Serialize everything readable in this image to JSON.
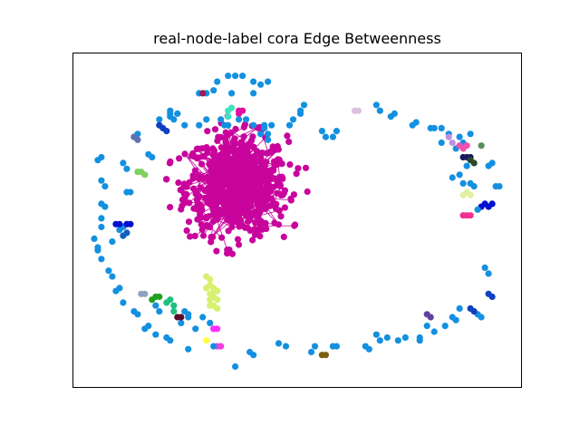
{
  "chart_data": {
    "type": "scatter",
    "title": "real-node-label cora Edge Betweenness",
    "xlabel": "",
    "ylabel": "",
    "axes_ticks": false,
    "grid": false,
    "legend": "none",
    "colors": {
      "main_cluster": "#c8049c",
      "satellite_default": "#1490e0",
      "frame": "#000000"
    },
    "main_cluster": {
      "name": "",
      "center": [
        0.335,
        0.645
      ],
      "spread": [
        0.07,
        0.085
      ],
      "count": 700
    },
    "points": [
      [
        0.31,
        0.03,
        "#1490e0"
      ],
      [
        0.33,
        0.03,
        "#1490e0"
      ],
      [
        0.35,
        0.03,
        "#1490e0"
      ],
      [
        0.28,
        0.05,
        "#1490e0"
      ],
      [
        0.38,
        0.05,
        "#1490e0"
      ],
      [
        0.25,
        0.09,
        "#1490e0"
      ],
      [
        0.23,
        0.09,
        "#1490e0"
      ],
      [
        0.27,
        0.08,
        "#1490e0"
      ],
      [
        0.42,
        0.05,
        "#1490e0"
      ],
      [
        0.4,
        0.06,
        "#1490e0"
      ],
      [
        0.38,
        0.09,
        "#1490e0"
      ],
      [
        0.24,
        0.09,
        "#a01854"
      ],
      [
        0.32,
        0.09,
        "#1490e0"
      ],
      [
        0.17,
        0.16,
        "#1490e0"
      ],
      [
        0.31,
        0.17,
        "#40e0c0"
      ],
      [
        0.31,
        0.15,
        "#40e0c0"
      ],
      [
        0.32,
        0.14,
        "#40e0c0"
      ],
      [
        0.51,
        0.16,
        "#1490e0"
      ],
      [
        0.51,
        0.15,
        "#1490e0"
      ],
      [
        0.52,
        0.13,
        "#1490e0"
      ],
      [
        0.34,
        0.15,
        "#e010a0"
      ],
      [
        0.34,
        0.16,
        "#e010a0"
      ],
      [
        0.35,
        0.15,
        "#e010a0"
      ],
      [
        0.42,
        0.23,
        "#1490e0"
      ],
      [
        0.43,
        0.2,
        "#1490e0"
      ],
      [
        0.41,
        0.21,
        "#1490e0"
      ],
      [
        0.42,
        0.25,
        "#1490e0"
      ],
      [
        0.3,
        0.2,
        "#1490e0"
      ],
      [
        0.19,
        0.2,
        "#1490e0"
      ],
      [
        0.23,
        0.2,
        "#1490e0"
      ],
      [
        0.25,
        0.18,
        "#1490e0"
      ],
      [
        0.29,
        0.18,
        "#1490e0"
      ],
      [
        0.31,
        0.2,
        "#1490e0"
      ],
      [
        0.34,
        0.18,
        "#1490e0"
      ],
      [
        0.36,
        0.18,
        "#1490e0"
      ],
      [
        0.38,
        0.2,
        "#1490e0"
      ],
      [
        0.4,
        0.23,
        "#1490e0"
      ],
      [
        0.41,
        0.2,
        "#1490e0"
      ],
      [
        0.48,
        0.2,
        "#1490e0"
      ],
      [
        0.49,
        0.18,
        "#1490e0"
      ],
      [
        0.57,
        0.22,
        "#1490e0"
      ],
      [
        0.58,
        0.24,
        "#1490e0"
      ],
      [
        0.6,
        0.24,
        "#1490e0"
      ],
      [
        0.61,
        0.22,
        "#1490e0"
      ],
      [
        0.66,
        0.15,
        "#ddc0dd"
      ],
      [
        0.67,
        0.15,
        "#ddc0dd"
      ],
      [
        0.72,
        0.13,
        "#1490e0"
      ],
      [
        0.73,
        0.15,
        "#1490e0"
      ],
      [
        0.76,
        0.17,
        "#1490e0"
      ],
      [
        0.77,
        0.16,
        "#1490e0"
      ],
      [
        0.82,
        0.2,
        "#1490e0"
      ],
      [
        0.83,
        0.19,
        "#1490e0"
      ],
      [
        0.87,
        0.21,
        "#1490e0"
      ],
      [
        0.88,
        0.21,
        "#1490e0"
      ],
      [
        0.9,
        0.21,
        "#1490e0"
      ],
      [
        0.92,
        0.23,
        "#1490e0"
      ],
      [
        0.93,
        0.26,
        "#c090e0"
      ],
      [
        0.92,
        0.24,
        "#c090e0"
      ],
      [
        0.95,
        0.24,
        "#1490e0"
      ],
      [
        0.96,
        0.26,
        "#1490e0"
      ],
      [
        0.98,
        0.23,
        "#1490e0"
      ],
      [
        0.9,
        0.26,
        "#1490e0"
      ],
      [
        0.94,
        0.28,
        "#1490e0"
      ],
      [
        0.95,
        0.27,
        "#f050b0"
      ],
      [
        0.96,
        0.28,
        "#f050b0"
      ],
      [
        0.97,
        0.27,
        "#f050b0"
      ],
      [
        0.96,
        0.31,
        "#1a1a60"
      ],
      [
        0.97,
        0.31,
        "#1a1a60"
      ],
      [
        0.98,
        0.31,
        "#1a1a60"
      ],
      [
        0.98,
        0.32,
        "#2a4a2a"
      ],
      [
        0.99,
        0.33,
        "#2a4a2a"
      ],
      [
        1.01,
        0.27,
        "#5a9060"
      ],
      [
        0.97,
        0.34,
        "#1490e0"
      ],
      [
        0.95,
        0.37,
        "#1490e0"
      ],
      [
        0.93,
        0.38,
        "#1490e0"
      ],
      [
        0.96,
        0.4,
        "#1490e0"
      ],
      [
        0.98,
        0.4,
        "#1490e0"
      ],
      [
        0.99,
        0.41,
        "#1490e0"
      ],
      [
        1.04,
        0.33,
        "#1490e0"
      ],
      [
        1.03,
        0.34,
        "#1490e0"
      ],
      [
        0.97,
        0.43,
        "#e0f0a0"
      ],
      [
        0.96,
        0.44,
        "#e0f0a0"
      ],
      [
        0.98,
        0.44,
        "#e0f0a0"
      ],
      [
        1.05,
        0.41,
        "#1490e0"
      ],
      [
        1.06,
        0.41,
        "#1490e0"
      ],
      [
        1.01,
        0.48,
        "#0010d0"
      ],
      [
        1.02,
        0.47,
        "#0010d0"
      ],
      [
        1.03,
        0.48,
        "#0010d0"
      ],
      [
        1.04,
        0.47,
        "#0010d0"
      ],
      [
        1.0,
        0.49,
        "#1490e0"
      ],
      [
        0.96,
        0.51,
        "#f03090"
      ],
      [
        0.97,
        0.51,
        "#f03090"
      ],
      [
        0.98,
        0.51,
        "#f03090"
      ],
      [
        1.02,
        0.69,
        "#1490e0"
      ],
      [
        1.03,
        0.71,
        "#1490e0"
      ],
      [
        1.03,
        0.78,
        "#1040c0"
      ],
      [
        1.04,
        0.79,
        "#1040c0"
      ],
      [
        1.01,
        0.86,
        "#1490e0"
      ],
      [
        1.0,
        0.85,
        "#1490e0"
      ],
      [
        0.95,
        0.83,
        "#1490e0"
      ],
      [
        0.94,
        0.87,
        "#1490e0"
      ],
      [
        0.93,
        0.86,
        "#1490e0"
      ],
      [
        0.91,
        0.89,
        "#1490e0"
      ],
      [
        0.88,
        0.91,
        "#1490e0"
      ],
      [
        0.86,
        0.89,
        "#1490e0"
      ],
      [
        0.84,
        0.93,
        "#1490e0"
      ],
      [
        0.84,
        0.94,
        "#1490e0"
      ],
      [
        0.8,
        0.93,
        "#1490e0"
      ],
      [
        0.78,
        0.94,
        "#1490e0"
      ],
      [
        0.73,
        0.94,
        "#1490e0"
      ],
      [
        0.72,
        0.92,
        "#1490e0"
      ],
      [
        0.7,
        0.97,
        "#1490e0"
      ],
      [
        0.69,
        0.96,
        "#1490e0"
      ],
      [
        0.61,
        0.96,
        "#1490e0"
      ],
      [
        0.6,
        0.96,
        "#1490e0"
      ],
      [
        0.55,
        0.96,
        "#1490e0"
      ],
      [
        0.54,
        0.98,
        "#1490e0"
      ],
      [
        0.57,
        0.99,
        "#7a6010"
      ],
      [
        0.58,
        0.99,
        "#7a6010"
      ],
      [
        0.47,
        0.96,
        "#1490e0"
      ],
      [
        0.45,
        0.95,
        "#1490e0"
      ],
      [
        0.38,
        0.99,
        "#1490e0"
      ],
      [
        0.37,
        0.98,
        "#1490e0"
      ],
      [
        0.33,
        1.03,
        "#1490e0"
      ],
      [
        0.28,
        0.96,
        "#f040e0"
      ],
      [
        0.29,
        0.96,
        "#f040e0"
      ],
      [
        0.27,
        0.96,
        "#1490e0"
      ],
      [
        0.2,
        0.97,
        "#1490e0"
      ],
      [
        0.15,
        0.94,
        "#1490e0"
      ],
      [
        0.14,
        0.93,
        "#1490e0"
      ],
      [
        0.11,
        0.92,
        "#1490e0"
      ],
      [
        0.09,
        0.89,
        "#1490e0"
      ],
      [
        0.08,
        0.9,
        "#1490e0"
      ],
      [
        0.06,
        0.85,
        "#1490e0"
      ],
      [
        0.05,
        0.84,
        "#1490e0"
      ],
      [
        0.02,
        0.81,
        "#1490e0"
      ],
      [
        0.0,
        0.77,
        "#1490e0"
      ],
      [
        0.01,
        0.76,
        "#1490e0"
      ],
      [
        -0.01,
        0.72,
        "#1490e0"
      ],
      [
        -0.02,
        0.7,
        "#1490e0"
      ],
      [
        -0.04,
        0.66,
        "#1490e0"
      ],
      [
        -0.05,
        0.63,
        "#1490e0"
      ],
      [
        -0.05,
        0.62,
        "#1490e0"
      ],
      [
        -0.06,
        0.59,
        "#1490e0"
      ],
      [
        -0.04,
        0.55,
        "#1490e0"
      ],
      [
        -0.04,
        0.52,
        "#1490e0"
      ],
      [
        -0.03,
        0.48,
        "#1490e0"
      ],
      [
        -0.04,
        0.47,
        "#1490e0"
      ],
      [
        -0.03,
        0.41,
        "#1490e0"
      ],
      [
        -0.04,
        0.39,
        "#1490e0"
      ],
      [
        -0.05,
        0.32,
        "#1490e0"
      ],
      [
        -0.04,
        0.31,
        "#1490e0"
      ],
      [
        0.05,
        0.24,
        "#1490e0"
      ],
      [
        0.06,
        0.23,
        "#1490e0"
      ],
      [
        0.12,
        0.18,
        "#1490e0"
      ],
      [
        0.16,
        0.18,
        "#1490e0"
      ],
      [
        0.15,
        0.17,
        "#1490e0"
      ],
      [
        0.25,
        0.94,
        "#ffff40"
      ],
      [
        0.22,
        0.9,
        "#1490e0"
      ],
      [
        0.18,
        0.88,
        "#1490e0"
      ],
      [
        0.2,
        0.86,
        "#1490e0"
      ],
      [
        0.12,
        0.84,
        "#1490e0"
      ],
      [
        0.11,
        0.82,
        "#1490e0"
      ],
      [
        0.1,
        0.8,
        "#20a020"
      ],
      [
        0.11,
        0.79,
        "#20a020"
      ],
      [
        0.12,
        0.79,
        "#20a020"
      ],
      [
        0.14,
        0.81,
        "#20c080"
      ],
      [
        0.15,
        0.8,
        "#20c080"
      ],
      [
        0.16,
        0.82,
        "#20c080"
      ],
      [
        0.16,
        0.84,
        "#20c080"
      ],
      [
        0.19,
        0.84,
        "#1490e0"
      ],
      [
        0.2,
        0.85,
        "#1490e0"
      ],
      [
        0.24,
        0.86,
        "#1490e0"
      ],
      [
        0.26,
        0.88,
        "#1490e0"
      ],
      [
        0.17,
        0.86,
        "#580a28"
      ],
      [
        0.18,
        0.86,
        "#580a28"
      ],
      [
        0.27,
        0.9,
        "#ff30ff"
      ],
      [
        0.28,
        0.9,
        "#ff30ff"
      ],
      [
        0.27,
        0.9,
        "#ff30ff"
      ],
      [
        0.26,
        0.82,
        "#d8f070"
      ],
      [
        0.27,
        0.82,
        "#d8f070"
      ],
      [
        0.28,
        0.83,
        "#d8f070"
      ],
      [
        0.27,
        0.79,
        "#d8f070"
      ],
      [
        0.28,
        0.8,
        "#d8f070"
      ],
      [
        0.26,
        0.8,
        "#d8f070"
      ],
      [
        0.27,
        0.77,
        "#d8f070"
      ],
      [
        0.28,
        0.77,
        "#d8f070"
      ],
      [
        0.26,
        0.78,
        "#d8f070"
      ],
      [
        0.25,
        0.76,
        "#d8f070"
      ],
      [
        0.26,
        0.75,
        "#d8f070"
      ],
      [
        0.27,
        0.76,
        "#d8f070"
      ],
      [
        0.26,
        0.73,
        "#d8f070"
      ],
      [
        0.25,
        0.72,
        "#d8f070"
      ],
      [
        0.01,
        0.56,
        "#1490e0"
      ],
      [
        0.02,
        0.55,
        "#1490e0"
      ],
      [
        0.0,
        0.54,
        "#0010d0"
      ],
      [
        0.01,
        0.54,
        "#0010d0"
      ],
      [
        0.03,
        0.54,
        "#0010d0"
      ],
      [
        0.04,
        0.54,
        "#0010d0"
      ],
      [
        0.02,
        0.58,
        "#1060c0"
      ],
      [
        0.03,
        0.57,
        "#1060c0"
      ],
      [
        -0.01,
        0.6,
        "#1490e0"
      ],
      [
        0.03,
        0.43,
        "#1490e0"
      ],
      [
        0.04,
        0.43,
        "#1490e0"
      ],
      [
        0.06,
        0.36,
        "#80d060"
      ],
      [
        0.07,
        0.36,
        "#80d060"
      ],
      [
        0.08,
        0.37,
        "#80d060"
      ],
      [
        0.03,
        0.35,
        "#1490e0"
      ],
      [
        0.02,
        0.33,
        "#1490e0"
      ],
      [
        0.09,
        0.3,
        "#1490e0"
      ],
      [
        0.1,
        0.31,
        "#1490e0"
      ],
      [
        0.12,
        0.2,
        "#1040c0"
      ],
      [
        0.13,
        0.21,
        "#1040c0"
      ],
      [
        0.14,
        0.22,
        "#1040c0"
      ],
      [
        0.05,
        0.24,
        "#6070b0"
      ],
      [
        0.06,
        0.25,
        "#6070b0"
      ],
      [
        0.15,
        0.16,
        "#1490e0"
      ],
      [
        0.15,
        0.15,
        "#1490e0"
      ],
      [
        0.75,
        0.93,
        "#1490e0"
      ],
      [
        0.86,
        0.85,
        "#6040a0"
      ],
      [
        0.87,
        0.86,
        "#6040a0"
      ],
      [
        0.98,
        0.83,
        "#1040c0"
      ],
      [
        0.99,
        0.84,
        "#1040c0"
      ],
      [
        0.07,
        0.78,
        "#90a0c0"
      ],
      [
        0.08,
        0.78,
        "#90a0c0"
      ]
    ]
  }
}
